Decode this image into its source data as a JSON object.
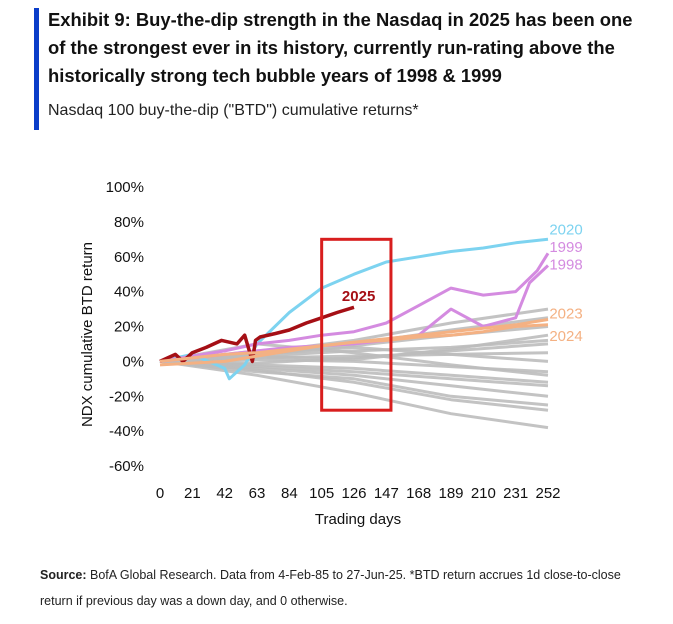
{
  "header": {
    "title": "Exhibit 9: Buy-the-dip strength in the Nasdaq in 2025 has been one of the strongest ever in its history, currently run-rating above the historically strong tech bubble years of 1998 & 1999",
    "subtitle": "Nasdaq 100 buy-the-dip (\"BTD\") cumulative returns*",
    "accent_color": "#0a3dc9"
  },
  "footnote": {
    "label": "Source:",
    "text": " BofA Global Research. Data from 4-Feb-85 to 27-Jun-25. *BTD return accrues 1d close-to-close return if previous day was a down day, and 0 otherwise."
  },
  "chart_data": {
    "type": "line",
    "title": "",
    "xlabel": "Trading days",
    "ylabel": "NDX cumulative BTD return",
    "xlim": [
      0,
      252
    ],
    "ylim": [
      -60,
      100
    ],
    "x_ticks": [
      0,
      21,
      42,
      63,
      84,
      105,
      126,
      147,
      168,
      189,
      210,
      231,
      252
    ],
    "y_ticks": [
      "100%",
      "80%",
      "60%",
      "40%",
      "20%",
      "0%",
      "-20%",
      "-40%",
      "-60%"
    ],
    "y_tick_values": [
      100,
      80,
      60,
      40,
      20,
      0,
      -20,
      -40,
      -60
    ],
    "highlight_box": {
      "x_range": [
        105,
        150
      ],
      "y_range": [
        -28,
        70
      ],
      "color": "#d81e1e"
    },
    "series": [
      {
        "name": "2020",
        "color": "#7dd3f0",
        "label_color": "#7dd3f0",
        "x": [
          0,
          21,
          42,
          45,
          50,
          55,
          63,
          84,
          105,
          126,
          147,
          168,
          189,
          210,
          231,
          252
        ],
        "y": [
          0,
          4,
          -4,
          -10,
          -6,
          -2,
          10,
          28,
          42,
          50,
          57,
          60,
          63,
          65,
          68,
          70
        ]
      },
      {
        "name": "1999",
        "color": "#d48be0",
        "label_color": "#d48be0",
        "x": [
          0,
          21,
          42,
          63,
          84,
          105,
          126,
          147,
          168,
          189,
          210,
          231,
          245,
          252
        ],
        "y": [
          0,
          3,
          6,
          10,
          12,
          15,
          17,
          22,
          32,
          42,
          38,
          40,
          52,
          62
        ]
      },
      {
        "name": "1998",
        "color": "#d48be0",
        "label_color": "#d48be0",
        "x": [
          0,
          21,
          42,
          63,
          84,
          105,
          126,
          147,
          168,
          189,
          210,
          231,
          240,
          252
        ],
        "y": [
          0,
          2,
          4,
          6,
          8,
          9,
          10,
          12,
          15,
          30,
          20,
          25,
          45,
          55
        ]
      },
      {
        "name": "2025",
        "color": "#a50f15",
        "label_color": "#a50f15",
        "x": [
          0,
          5,
          10,
          15,
          21,
          30,
          40,
          50,
          55,
          60,
          62,
          65,
          75,
          84,
          95,
          105,
          115,
          126
        ],
        "y": [
          0,
          2,
          4,
          0,
          5,
          8,
          12,
          10,
          15,
          0,
          12,
          14,
          16,
          18,
          22,
          25,
          28,
          31
        ]
      },
      {
        "name": "2023",
        "color": "#f4b183",
        "label_color": "#f4b183",
        "x": [
          0,
          21,
          42,
          63,
          84,
          105,
          126,
          147,
          168,
          189,
          210,
          231,
          252
        ],
        "y": [
          0,
          2,
          4,
          5,
          7,
          9,
          11,
          13,
          15,
          17,
          19,
          21,
          24
        ]
      },
      {
        "name": "2024",
        "color": "#f4b183",
        "label_color": "#f4b183",
        "x": [
          0,
          21,
          42,
          63,
          84,
          105,
          126,
          147,
          168,
          189,
          210,
          231,
          252
        ],
        "y": [
          -2,
          -1,
          0,
          3,
          6,
          9,
          11,
          12,
          14,
          15,
          17,
          20,
          21
        ]
      }
    ],
    "other_years": [
      {
        "name": "other-year-1",
        "x": [
          0,
          63,
          126,
          189,
          252
        ],
        "y": [
          0,
          -8,
          -18,
          -30,
          -38
        ]
      },
      {
        "name": "other-year-2",
        "x": [
          0,
          63,
          126,
          189,
          252
        ],
        "y": [
          0,
          -5,
          -12,
          -22,
          -28
        ]
      },
      {
        "name": "other-year-3",
        "x": [
          0,
          63,
          126,
          189,
          252
        ],
        "y": [
          0,
          -4,
          -8,
          -14,
          -20
        ]
      },
      {
        "name": "other-year-4",
        "x": [
          0,
          63,
          126,
          189,
          252
        ],
        "y": [
          0,
          -2,
          -4,
          -8,
          -12
        ]
      },
      {
        "name": "other-year-5",
        "x": [
          0,
          63,
          126,
          189,
          252
        ],
        "y": [
          0,
          1,
          0,
          -3,
          -6
        ]
      },
      {
        "name": "other-year-6",
        "x": [
          0,
          63,
          126,
          189,
          252
        ],
        "y": [
          0,
          2,
          3,
          4,
          5
        ]
      },
      {
        "name": "other-year-7",
        "x": [
          0,
          63,
          126,
          189,
          252
        ],
        "y": [
          0,
          3,
          6,
          8,
          12
        ]
      },
      {
        "name": "other-year-8",
        "x": [
          0,
          63,
          126,
          189,
          252
        ],
        "y": [
          0,
          4,
          9,
          15,
          20
        ]
      },
      {
        "name": "other-year-9",
        "x": [
          0,
          63,
          126,
          189,
          252
        ],
        "y": [
          0,
          5,
          12,
          22,
          30
        ]
      },
      {
        "name": "other-year-10",
        "x": [
          0,
          63,
          126,
          189,
          252
        ],
        "y": [
          0,
          -3,
          -6,
          -10,
          -14
        ]
      },
      {
        "name": "other-year-11",
        "x": [
          0,
          63,
          126,
          189,
          252
        ],
        "y": [
          0,
          -1,
          2,
          6,
          10
        ]
      },
      {
        "name": "other-year-12",
        "x": [
          0,
          63,
          126,
          189,
          252
        ],
        "y": [
          0,
          6,
          10,
          18,
          25
        ]
      },
      {
        "name": "other-year-13",
        "x": [
          0,
          63,
          126,
          189,
          252
        ],
        "y": [
          0,
          4,
          8,
          4,
          0
        ]
      },
      {
        "name": "other-year-14",
        "x": [
          0,
          63,
          126,
          189,
          252
        ],
        "y": [
          0,
          -6,
          -10,
          -20,
          -25
        ]
      },
      {
        "name": "other-year-15",
        "x": [
          0,
          63,
          126,
          189,
          252
        ],
        "y": [
          0,
          10,
          5,
          -2,
          -8
        ]
      },
      {
        "name": "other-year-16",
        "x": [
          0,
          63,
          126,
          189,
          252
        ],
        "y": [
          0,
          3,
          1,
          7,
          15
        ]
      }
    ],
    "other_years_color": "#bcbcbc"
  }
}
